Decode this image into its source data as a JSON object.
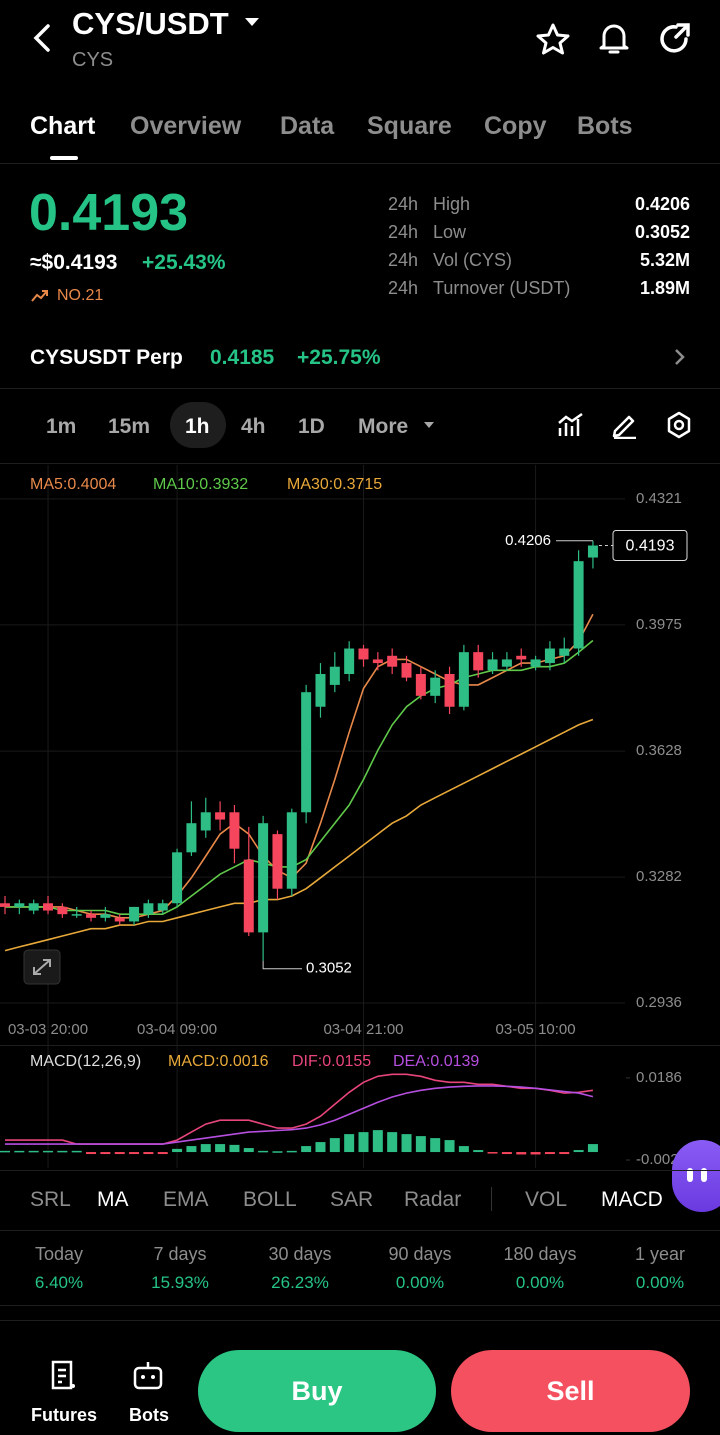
{
  "header": {
    "pair": "CYS/USDT",
    "base": "CYS"
  },
  "tabs": [
    "Chart",
    "Overview",
    "Data",
    "Square",
    "Copy",
    "Bots"
  ],
  "price": {
    "last": "0.4193",
    "usd": "≈$0.4193",
    "change": "+25.43%",
    "rank": "NO.21"
  },
  "stats": [
    {
      "period": "24h",
      "label": "High",
      "value": "0.4206"
    },
    {
      "period": "24h",
      "label": "Low",
      "value": "0.3052"
    },
    {
      "period": "24h",
      "label": "Vol (CYS)",
      "value": "5.32M"
    },
    {
      "period": "24h",
      "label": "Turnover (USDT)",
      "value": "1.89M"
    }
  ],
  "perp": {
    "name": "CYSUSDT Perp",
    "price": "0.4185",
    "change": "+25.75%"
  },
  "intervals": [
    "1m",
    "15m",
    "1h",
    "4h",
    "1D",
    "More"
  ],
  "chart_data": [
    {
      "type": "candlestick",
      "categories": [
        null,
        null,
        null,
        "03-03 20:00",
        null,
        null,
        null,
        null,
        null,
        null,
        null,
        null,
        "03-04 09:00",
        null,
        null,
        null,
        null,
        null,
        null,
        null,
        null,
        null,
        null,
        null,
        null,
        "03-04 21:00",
        null,
        null,
        null,
        null,
        null,
        null,
        null,
        null,
        null,
        null,
        null,
        "03-05 10:00",
        null,
        null,
        null,
        null
      ],
      "open": [
        0.321,
        0.32,
        0.319,
        0.321,
        0.32,
        0.318,
        0.318,
        0.317,
        0.317,
        0.316,
        0.318,
        0.319,
        0.321,
        0.335,
        0.341,
        0.346,
        0.346,
        0.333,
        0.313,
        0.34,
        0.325,
        0.346,
        0.375,
        0.381,
        0.384,
        0.391,
        0.388,
        0.389,
        0.387,
        0.384,
        0.378,
        0.384,
        0.375,
        0.39,
        0.385,
        0.386,
        0.389,
        0.386,
        0.387,
        0.389,
        0.391,
        0.416
      ],
      "high": [
        0.323,
        0.322,
        0.322,
        0.323,
        0.321,
        0.32,
        0.319,
        0.32,
        0.318,
        0.32,
        0.322,
        0.322,
        0.336,
        0.349,
        0.35,
        0.349,
        0.348,
        0.342,
        0.345,
        0.341,
        0.347,
        0.381,
        0.387,
        0.39,
        0.393,
        0.392,
        0.39,
        0.391,
        0.389,
        0.386,
        0.385,
        0.386,
        0.392,
        0.392,
        0.39,
        0.39,
        0.391,
        0.389,
        0.393,
        0.394,
        0.418,
        0.4206
      ],
      "low": [
        0.318,
        0.318,
        0.318,
        0.318,
        0.317,
        0.317,
        0.316,
        0.316,
        0.315,
        0.315,
        0.317,
        0.318,
        0.32,
        0.334,
        0.339,
        0.341,
        0.332,
        0.312,
        0.3052,
        0.322,
        0.323,
        0.343,
        0.372,
        0.379,
        0.382,
        0.386,
        0.385,
        0.384,
        0.382,
        0.377,
        0.376,
        0.373,
        0.374,
        0.383,
        0.384,
        0.385,
        0.386,
        0.385,
        0.385,
        0.387,
        0.389,
        0.413
      ],
      "close": [
        0.32,
        0.321,
        0.321,
        0.319,
        0.318,
        0.318,
        0.317,
        0.318,
        0.316,
        0.32,
        0.321,
        0.321,
        0.335,
        0.343,
        0.346,
        0.344,
        0.336,
        0.313,
        0.343,
        0.325,
        0.346,
        0.379,
        0.384,
        0.386,
        0.391,
        0.388,
        0.387,
        0.386,
        0.383,
        0.378,
        0.383,
        0.375,
        0.39,
        0.385,
        0.388,
        0.388,
        0.388,
        0.388,
        0.391,
        0.391,
        0.415,
        0.4193
      ],
      "up_color": "#2ebd85",
      "down_color": "#f6465d",
      "series": [
        {
          "name": "MA5:0.4004",
          "color": "#e8894a",
          "values": [
            0.32,
            0.32,
            0.32,
            0.32,
            0.32,
            0.319,
            0.318,
            0.318,
            0.317,
            0.317,
            0.318,
            0.319,
            0.323,
            0.328,
            0.334,
            0.34,
            0.343,
            0.34,
            0.334,
            0.33,
            0.328,
            0.332,
            0.343,
            0.355,
            0.368,
            0.38,
            0.386,
            0.388,
            0.388,
            0.386,
            0.384,
            0.382,
            0.381,
            0.381,
            0.383,
            0.385,
            0.387,
            0.387,
            0.388,
            0.389,
            0.393,
            0.4004
          ]
        },
        {
          "name": "MA10:0.3932",
          "color": "#5fc94a",
          "values": [
            0.32,
            0.32,
            0.32,
            0.32,
            0.319,
            0.319,
            0.319,
            0.319,
            0.318,
            0.318,
            0.318,
            0.318,
            0.32,
            0.323,
            0.326,
            0.329,
            0.331,
            0.333,
            0.332,
            0.331,
            0.331,
            0.333,
            0.338,
            0.343,
            0.348,
            0.355,
            0.363,
            0.37,
            0.375,
            0.378,
            0.38,
            0.381,
            0.383,
            0.384,
            0.385,
            0.385,
            0.385,
            0.386,
            0.386,
            0.387,
            0.39,
            0.3932
          ]
        },
        {
          "name": "MA30:0.3715",
          "color": "#e8a93a",
          "values": [
            0.308,
            0.309,
            0.31,
            0.311,
            0.312,
            0.313,
            0.314,
            0.314,
            0.315,
            0.315,
            0.316,
            0.316,
            0.317,
            0.318,
            0.319,
            0.32,
            0.321,
            0.321,
            0.322,
            0.322,
            0.323,
            0.325,
            0.328,
            0.331,
            0.334,
            0.337,
            0.34,
            0.343,
            0.345,
            0.348,
            0.35,
            0.352,
            0.354,
            0.356,
            0.358,
            0.36,
            0.362,
            0.364,
            0.366,
            0.368,
            0.37,
            0.3715
          ]
        }
      ],
      "ylim": [
        0.2903,
        0.4406
      ],
      "yticks": [
        0.4321,
        0.3975,
        0.3628,
        0.3282,
        0.2936
      ],
      "grid": true,
      "high_marker": 0.4206,
      "low_marker": 0.3052,
      "last_price": 0.4193
    },
    {
      "type": "macd",
      "title": "MACD(12,26,9)",
      "up_color": "#2ebd85",
      "down_color": "#f6465d",
      "series": [
        {
          "name": "MACD:0.0016",
          "color": "#e8a93a",
          "kind": "bar",
          "values": [
            0.0003,
            0.0003,
            0.0003,
            0.0003,
            0.0003,
            0.0003,
            -0.0005,
            -0.0005,
            -0.0005,
            -0.0005,
            -0.0005,
            -0.0005,
            0.0008,
            0.0015,
            0.002,
            0.002,
            0.0018,
            0.001,
            0.0003,
            0.0002,
            0.0003,
            0.0015,
            0.0025,
            0.0035,
            0.0045,
            0.005,
            0.0055,
            0.005,
            0.0045,
            0.004,
            0.0035,
            0.003,
            0.0015,
            0.0005,
            -0.0003,
            -0.0005,
            -0.0006,
            -0.0006,
            -0.0005,
            -0.0005,
            0.0005,
            0.002
          ]
        },
        {
          "name": "DIF:0.0155",
          "color": "#e8457d",
          "kind": "line",
          "values": [
            0.003,
            0.003,
            0.003,
            0.003,
            0.003,
            0.002,
            0.002,
            0.002,
            0.002,
            0.002,
            0.002,
            0.002,
            0.003,
            0.005,
            0.007,
            0.008,
            0.008,
            0.008,
            0.007,
            0.006,
            0.006,
            0.007,
            0.009,
            0.012,
            0.015,
            0.0175,
            0.019,
            0.0195,
            0.0195,
            0.019,
            0.018,
            0.0175,
            0.0175,
            0.017,
            0.017,
            0.0165,
            0.016,
            0.016,
            0.0155,
            0.0148,
            0.015,
            0.0155
          ]
        },
        {
          "name": "DEA:0.0139",
          "color": "#b64fe0",
          "kind": "line",
          "values": [
            0.002,
            0.002,
            0.002,
            0.002,
            0.002,
            0.002,
            0.002,
            0.002,
            0.002,
            0.002,
            0.002,
            0.002,
            0.0025,
            0.003,
            0.0035,
            0.004,
            0.0045,
            0.005,
            0.0052,
            0.0054,
            0.0056,
            0.006,
            0.0068,
            0.008,
            0.0095,
            0.011,
            0.0125,
            0.0138,
            0.0148,
            0.0155,
            0.016,
            0.0163,
            0.0165,
            0.0166,
            0.0166,
            0.0165,
            0.0163,
            0.016,
            0.0156,
            0.0152,
            0.0148,
            0.0139
          ]
        }
      ],
      "ylim": [
        -0.004,
        0.0256
      ],
      "yticks": [
        0.0186,
        -0.002
      ]
    }
  ],
  "indicators": [
    "SRL",
    "MA",
    "EMA",
    "BOLL",
    "SAR",
    "Radar",
    "VOL",
    "MACD"
  ],
  "returns": [
    {
      "period": "Today",
      "value": "6.40%"
    },
    {
      "period": "7 days",
      "value": "15.93%"
    },
    {
      "period": "30 days",
      "value": "26.23%"
    },
    {
      "period": "90 days",
      "value": "0.00%"
    },
    {
      "period": "180 days",
      "value": "0.00%"
    },
    {
      "period": "1 year",
      "value": "0.00%"
    }
  ],
  "footer": {
    "futures": "Futures",
    "bots": "Bots",
    "buy": "Buy",
    "sell": "Sell"
  }
}
